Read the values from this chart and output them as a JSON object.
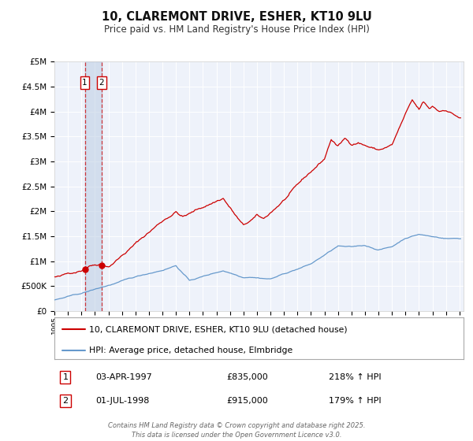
{
  "title": "10, CLAREMONT DRIVE, ESHER, KT10 9LU",
  "subtitle": "Price paid vs. HM Land Registry's House Price Index (HPI)",
  "legend_line1": "10, CLAREMONT DRIVE, ESHER, KT10 9LU (detached house)",
  "legend_line2": "HPI: Average price, detached house, Elmbridge",
  "transaction1_date": "03-APR-1997",
  "transaction1_price": "£835,000",
  "transaction1_hpi": "218% ↑ HPI",
  "transaction2_date": "01-JUL-1998",
  "transaction2_price": "£915,000",
  "transaction2_hpi": "179% ↑ HPI",
  "footer": "Contains HM Land Registry data © Crown copyright and database right 2025.\nThis data is licensed under the Open Government Licence v3.0.",
  "red_color": "#cc0000",
  "blue_color": "#6699cc",
  "background_color": "#eef2fa",
  "grid_color": "#ffffff",
  "ylim_max": 5000000,
  "transaction1_year": 1997.25,
  "transaction1_value": 835000,
  "transaction2_year": 1998.5,
  "transaction2_value": 915000
}
